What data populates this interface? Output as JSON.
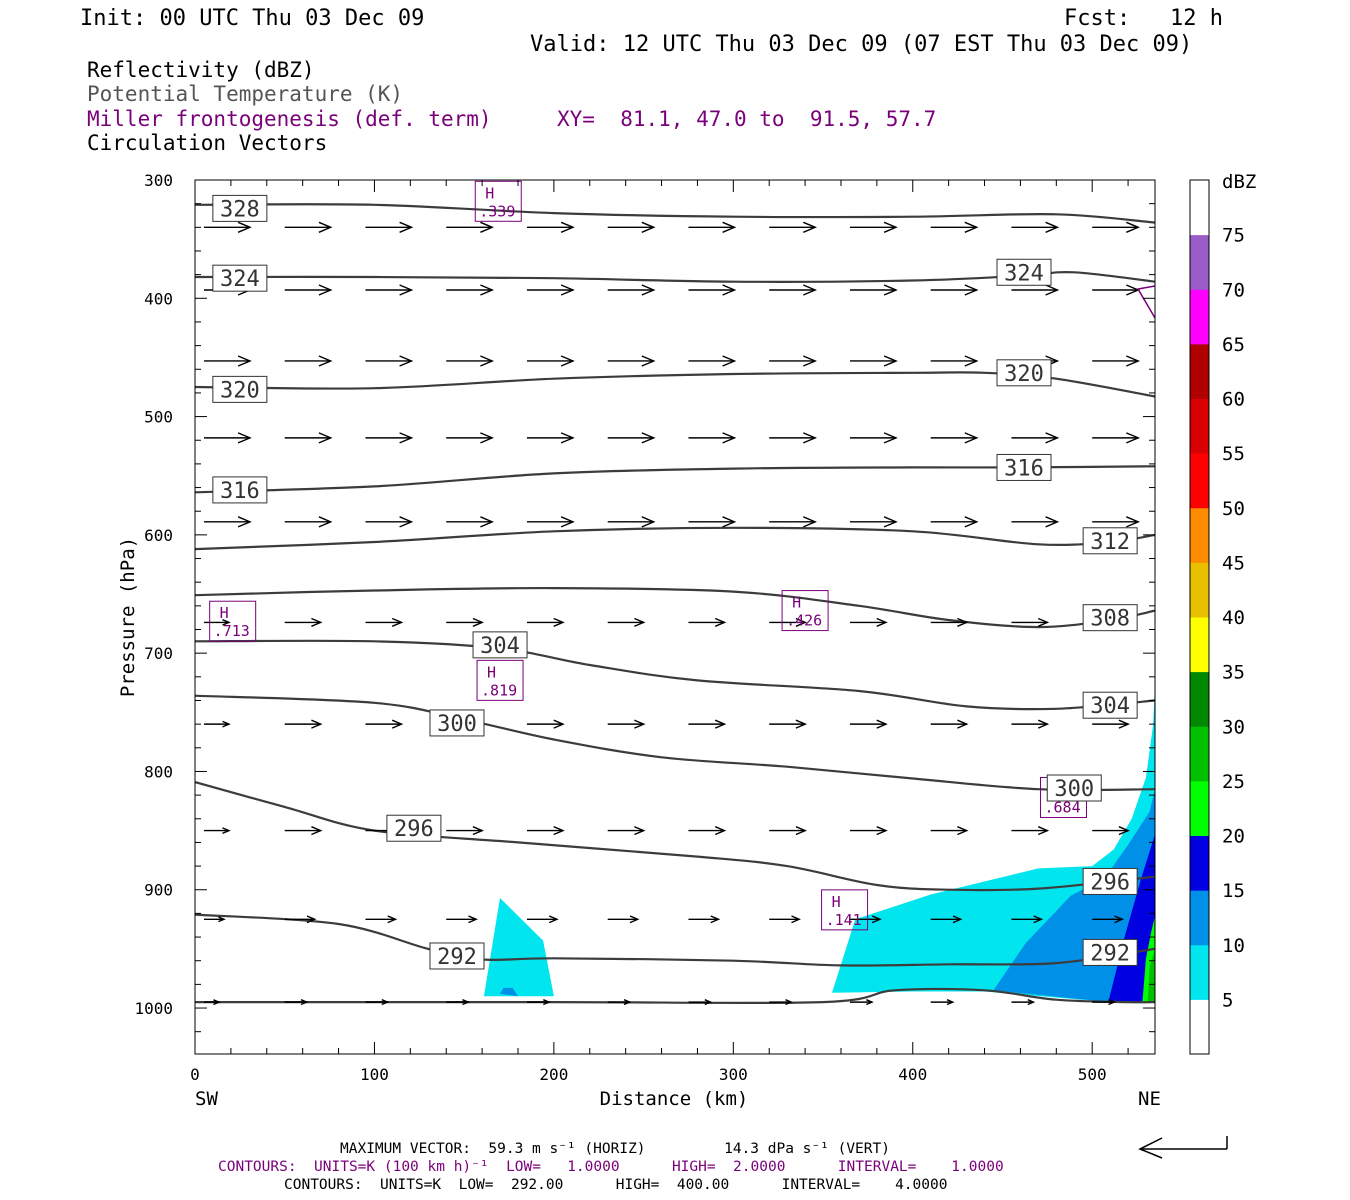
{
  "header": {
    "init": "Init: 00 UTC Thu 03 Dec 09",
    "fcst": "Fcst:   12 h",
    "valid": "Valid: 12 UTC Thu 03 Dec 09 (07 EST Thu 03 Dec 09)",
    "fields": [
      {
        "text": "Reflectivity (dBZ)",
        "color": "#000000"
      },
      {
        "text": "Potential Temperature (K)",
        "color": "#555555"
      },
      {
        "text": "Miller frontogenesis (def. term)",
        "color": "#7a007a"
      },
      {
        "text": "Circulation Vectors",
        "color": "#000000"
      }
    ],
    "xy": "XY=  81.1, 47.0 to  91.5, 57.7"
  },
  "colors": {
    "theta": "#3c3c3c",
    "fronto": "#7a007a",
    "vector": "#000000"
  },
  "chart_data": {
    "type": "cross-section",
    "xlabel": "Distance (km)",
    "ylabel": "Pressure (hPa)",
    "x_ends": [
      "SW",
      "NE"
    ],
    "xlim": [
      0,
      535
    ],
    "ylim": [
      1040,
      300
    ],
    "xticks": [
      0,
      100,
      200,
      300,
      400,
      500
    ],
    "yticks": [
      300,
      400,
      500,
      600,
      700,
      800,
      900,
      1000
    ],
    "colorbar": {
      "title": "dBZ",
      "ticks": [
        "5",
        "10",
        "15",
        "20",
        "25",
        "30",
        "35",
        "40",
        "45",
        "50",
        "55",
        "60",
        "65",
        "70",
        "75"
      ],
      "colors": [
        "#ffffff",
        "#00e5ee",
        "#0090e8",
        "#0000e0",
        "#00ff00",
        "#00c000",
        "#008800",
        "#ffff00",
        "#e8c000",
        "#ff8c00",
        "#ff0000",
        "#d80000",
        "#b00000",
        "#ff00ff",
        "#9a5cc8",
        "#ffffff"
      ]
    },
    "reflectivity": [
      {
        "level": "5",
        "color": "#00e5ee",
        "points": [
          [
            161,
            990
          ],
          [
            170,
            907
          ],
          [
            194,
            943
          ],
          [
            200,
            990
          ]
        ]
      },
      {
        "level": "10",
        "color": "#0090e8",
        "points": [
          [
            170,
            988
          ],
          [
            172,
            983
          ],
          [
            177,
            983
          ],
          [
            180,
            990
          ]
        ]
      },
      {
        "level": "5",
        "color": "#00e5ee",
        "points": [
          [
            355,
            987
          ],
          [
            368,
            925
          ],
          [
            410,
            904
          ],
          [
            470,
            882
          ],
          [
            500,
            880
          ],
          [
            512,
            866
          ],
          [
            522,
            840
          ],
          [
            530,
            805
          ],
          [
            534,
            760
          ],
          [
            535,
            725
          ],
          [
            535,
            995
          ],
          [
            510,
            995
          ],
          [
            440,
            986
          ],
          [
            400,
            986
          ]
        ]
      },
      {
        "level": "10",
        "color": "#0090e8",
        "points": [
          [
            445,
            985
          ],
          [
            463,
            945
          ],
          [
            488,
            905
          ],
          [
            507,
            890
          ],
          [
            520,
            862
          ],
          [
            532,
            834
          ],
          [
            535,
            815
          ],
          [
            535,
            995
          ],
          [
            510,
            995
          ]
        ]
      },
      {
        "level": "15",
        "color": "#0000e0",
        "points": [
          [
            509,
            995
          ],
          [
            518,
            940
          ],
          [
            527,
            892
          ],
          [
            535,
            853
          ],
          [
            535,
            995
          ]
        ]
      },
      {
        "level": "20",
        "color": "#00ff00",
        "points": [
          [
            528,
            995
          ],
          [
            530,
            958
          ],
          [
            533,
            935
          ],
          [
            535,
            922
          ],
          [
            535,
            995
          ]
        ]
      },
      {
        "level": "25",
        "color": "#00c000",
        "points": [
          [
            531,
            995
          ],
          [
            532,
            965
          ],
          [
            535,
            950
          ],
          [
            535,
            995
          ]
        ]
      }
    ],
    "theta_contours": [
      {
        "value": "328",
        "points": [
          [
            0,
            321
          ],
          [
            100,
            321
          ],
          [
            200,
            328
          ],
          [
            300,
            331
          ],
          [
            400,
            331
          ],
          [
            480,
            329
          ],
          [
            535,
            336
          ]
        ],
        "labels": [
          [
            25,
            324
          ]
        ]
      },
      {
        "value": "324",
        "points": [
          [
            0,
            382
          ],
          [
            100,
            382
          ],
          [
            200,
            383
          ],
          [
            300,
            386
          ],
          [
            400,
            385
          ],
          [
            460,
            381
          ],
          [
            490,
            378
          ],
          [
            535,
            386
          ]
        ],
        "labels": [
          [
            25,
            383
          ],
          [
            462,
            378
          ]
        ]
      },
      {
        "value": "320",
        "points": [
          [
            0,
            475
          ],
          [
            100,
            476
          ],
          [
            200,
            468
          ],
          [
            300,
            464
          ],
          [
            400,
            463
          ],
          [
            440,
            463
          ],
          [
            480,
            468
          ],
          [
            535,
            483
          ]
        ],
        "labels": [
          [
            25,
            477
          ],
          [
            462,
            463
          ]
        ]
      },
      {
        "value": "316",
        "points": [
          [
            0,
            564
          ],
          [
            100,
            559
          ],
          [
            200,
            548
          ],
          [
            300,
            544
          ],
          [
            400,
            543
          ],
          [
            460,
            543
          ],
          [
            535,
            542
          ]
        ],
        "labels": [
          [
            25,
            562
          ],
          [
            462,
            543
          ]
        ]
      },
      {
        "value": "312",
        "points": [
          [
            0,
            612
          ],
          [
            100,
            606
          ],
          [
            200,
            597
          ],
          [
            300,
            594
          ],
          [
            400,
            597
          ],
          [
            470,
            608
          ],
          [
            510,
            606
          ],
          [
            535,
            600
          ]
        ],
        "labels": [
          [
            510,
            605
          ]
        ]
      },
      {
        "value": "308",
        "points": [
          [
            0,
            651
          ],
          [
            100,
            647
          ],
          [
            200,
            645
          ],
          [
            300,
            648
          ],
          [
            370,
            660
          ],
          [
            420,
            672
          ],
          [
            470,
            678
          ],
          [
            510,
            672
          ],
          [
            535,
            664
          ]
        ],
        "labels": [
          [
            510,
            670
          ]
        ]
      },
      {
        "value": "304",
        "points": [
          [
            0,
            690
          ],
          [
            100,
            690
          ],
          [
            170,
            696
          ],
          [
            220,
            710
          ],
          [
            280,
            723
          ],
          [
            370,
            732
          ],
          [
            430,
            745
          ],
          [
            480,
            747
          ],
          [
            535,
            740
          ]
        ],
        "labels": [
          [
            170,
            693
          ],
          [
            510,
            744
          ]
        ]
      },
      {
        "value": "300",
        "points": [
          [
            0,
            736
          ],
          [
            100,
            742
          ],
          [
            150,
            756
          ],
          [
            200,
            773
          ],
          [
            260,
            788
          ],
          [
            330,
            796
          ],
          [
            400,
            806
          ],
          [
            470,
            815
          ],
          [
            535,
            815
          ]
        ],
        "labels": [
          [
            146,
            759
          ],
          [
            490,
            814
          ]
        ]
      },
      {
        "value": "296",
        "points": [
          [
            0,
            809
          ],
          [
            50,
            830
          ],
          [
            100,
            850
          ],
          [
            180,
            860
          ],
          [
            280,
            872
          ],
          [
            330,
            880
          ],
          [
            380,
            896
          ],
          [
            420,
            900
          ],
          [
            470,
            899
          ],
          [
            535,
            889
          ]
        ],
        "labels": [
          [
            122,
            848
          ],
          [
            510,
            893
          ]
        ]
      },
      {
        "value": "292",
        "points": [
          [
            0,
            921
          ],
          [
            80,
            929
          ],
          [
            130,
            950
          ],
          [
            160,
            959
          ],
          [
            200,
            958
          ],
          [
            300,
            960
          ],
          [
            360,
            964
          ],
          [
            420,
            963
          ],
          [
            480,
            962
          ],
          [
            535,
            950
          ]
        ],
        "labels": [
          [
            146,
            956
          ],
          [
            510,
            953
          ]
        ]
      },
      {
        "value": "",
        "points": [
          [
            0,
            995
          ],
          [
            200,
            995
          ],
          [
            350,
            995
          ],
          [
            390,
            985
          ],
          [
            440,
            985
          ],
          [
            480,
            993
          ],
          [
            520,
            995
          ],
          [
            535,
            995
          ]
        ],
        "labels": []
      }
    ],
    "fronto_maxima": [
      {
        "symbol": "H",
        "value": ".339",
        "x": 169,
        "p": 318
      },
      {
        "symbol": "H",
        "value": ".713",
        "x": 21,
        "p": 673
      },
      {
        "symbol": "H",
        "value": ".426",
        "x": 340,
        "p": 664
      },
      {
        "symbol": "H",
        "value": ".819",
        "x": 170,
        "p": 723
      },
      {
        "symbol": "H",
        "value": ".684",
        "x": 484,
        "p": 822
      },
      {
        "symbol": "H",
        "value": ".141",
        "x": 362,
        "p": 917
      }
    ],
    "vectors": {
      "x": [
        5,
        50,
        95,
        140,
        185,
        230,
        275,
        320,
        365,
        410,
        455,
        500
      ],
      "rows": [
        {
          "p": 340,
          "u": [
            46,
            46,
            46,
            46,
            46,
            46,
            46,
            46,
            46,
            46,
            46,
            46
          ],
          "w": [
            0,
            0,
            0,
            0,
            0,
            0,
            0,
            0,
            0,
            0,
            0,
            0
          ]
        },
        {
          "p": 393,
          "u": [
            46,
            46,
            46,
            46,
            46,
            46,
            46,
            46,
            46,
            46,
            46,
            46
          ],
          "w": [
            0,
            0,
            0,
            0,
            0,
            0,
            0,
            0,
            0,
            0,
            0,
            0
          ]
        },
        {
          "p": 453,
          "u": [
            46,
            46,
            46,
            46,
            46,
            46,
            46,
            46,
            46,
            46,
            46,
            46
          ],
          "w": [
            0,
            0,
            0,
            0,
            0,
            0,
            0,
            0,
            0,
            0,
            0,
            0
          ]
        },
        {
          "p": 518,
          "u": [
            46,
            46,
            46,
            46,
            46,
            46,
            46,
            46,
            46,
            46,
            46,
            46
          ],
          "w": [
            0,
            0,
            0,
            0,
            0,
            0,
            0,
            0,
            0,
            0,
            0,
            0
          ]
        },
        {
          "p": 589,
          "u": [
            46,
            46,
            46,
            46,
            46,
            46,
            46,
            46,
            46,
            46,
            46,
            46
          ],
          "w": [
            0,
            0,
            0,
            0,
            0,
            0,
            0,
            0,
            0,
            0,
            0,
            0
          ]
        },
        {
          "p": 674,
          "u": [
            25,
            36,
            36,
            36,
            36,
            36,
            36,
            36,
            36,
            36,
            36,
            36
          ],
          "w": [
            0,
            0,
            0,
            0,
            0,
            0,
            0,
            0,
            0,
            0,
            0,
            0
          ]
        },
        {
          "p": 760,
          "u": [
            25,
            36,
            36,
            36,
            36,
            36,
            36,
            36,
            36,
            36,
            36,
            36
          ],
          "w": [
            0,
            0,
            0,
            0,
            0,
            0,
            0,
            0,
            0,
            0,
            0,
            0
          ]
        },
        {
          "p": 850,
          "u": [
            25,
            36,
            36,
            36,
            36,
            36,
            36,
            36,
            36,
            36,
            36,
            36
          ],
          "w": [
            0,
            0,
            0,
            0,
            0,
            0,
            0,
            0,
            0,
            0,
            0,
            0
          ]
        },
        {
          "p": 925,
          "u": [
            20,
            30,
            30,
            30,
            30,
            30,
            30,
            30,
            30,
            30,
            30,
            30
          ],
          "w": [
            0,
            0,
            0,
            0,
            0,
            0,
            0,
            0,
            0,
            0,
            0,
            0
          ]
        },
        {
          "p": 995,
          "u": [
            15,
            22,
            22,
            22,
            22,
            22,
            22,
            22,
            22,
            22,
            22,
            22
          ],
          "w": [
            0,
            0,
            0,
            0,
            0,
            0,
            0,
            0,
            0,
            0,
            0,
            0
          ]
        }
      ]
    }
  },
  "footer": {
    "max_vector": "MAXIMUM VECTOR:  59.3 m s⁻¹ (HORIZ)         14.3 dPa s⁻¹ (VERT)",
    "contours_fronto": "CONTOURS:  UNITS=K (100 km h)⁻¹  LOW=   1.0000      HIGH=  2.0000      INTERVAL=    1.0000",
    "contours_theta": "CONTOURS:  UNITS=K  LOW=  292.00      HIGH=  400.00      INTERVAL=    4.0000"
  }
}
